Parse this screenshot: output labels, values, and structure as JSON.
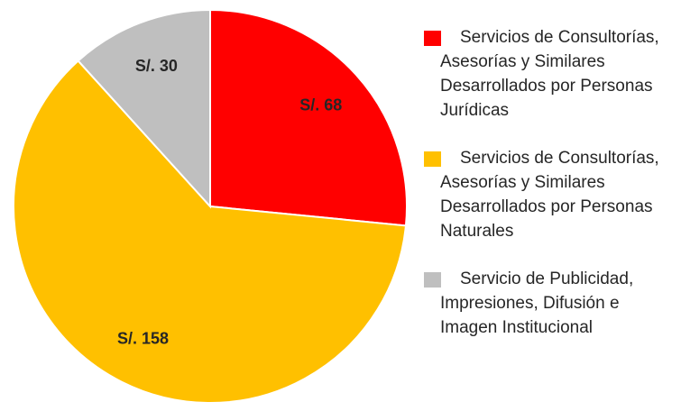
{
  "chart_data": {
    "type": "pie",
    "categories": [
      "Servicios de Consultorías, Asesorías y Similares Desarrollados por Personas Jurídicas",
      "Servicios de Consultorías, Asesorías y Similares Desarrollados por Personas Naturales",
      "Servicio de Publicidad, Impresiones, Difusión e Imagen Institucional"
    ],
    "values": [
      68,
      158,
      30
    ],
    "value_labels": [
      "S/. 68",
      "S/. 158",
      "S/. 30"
    ],
    "colors": [
      "#ff0000",
      "#ffc000",
      "#bfbfbf"
    ],
    "legend": "right"
  }
}
